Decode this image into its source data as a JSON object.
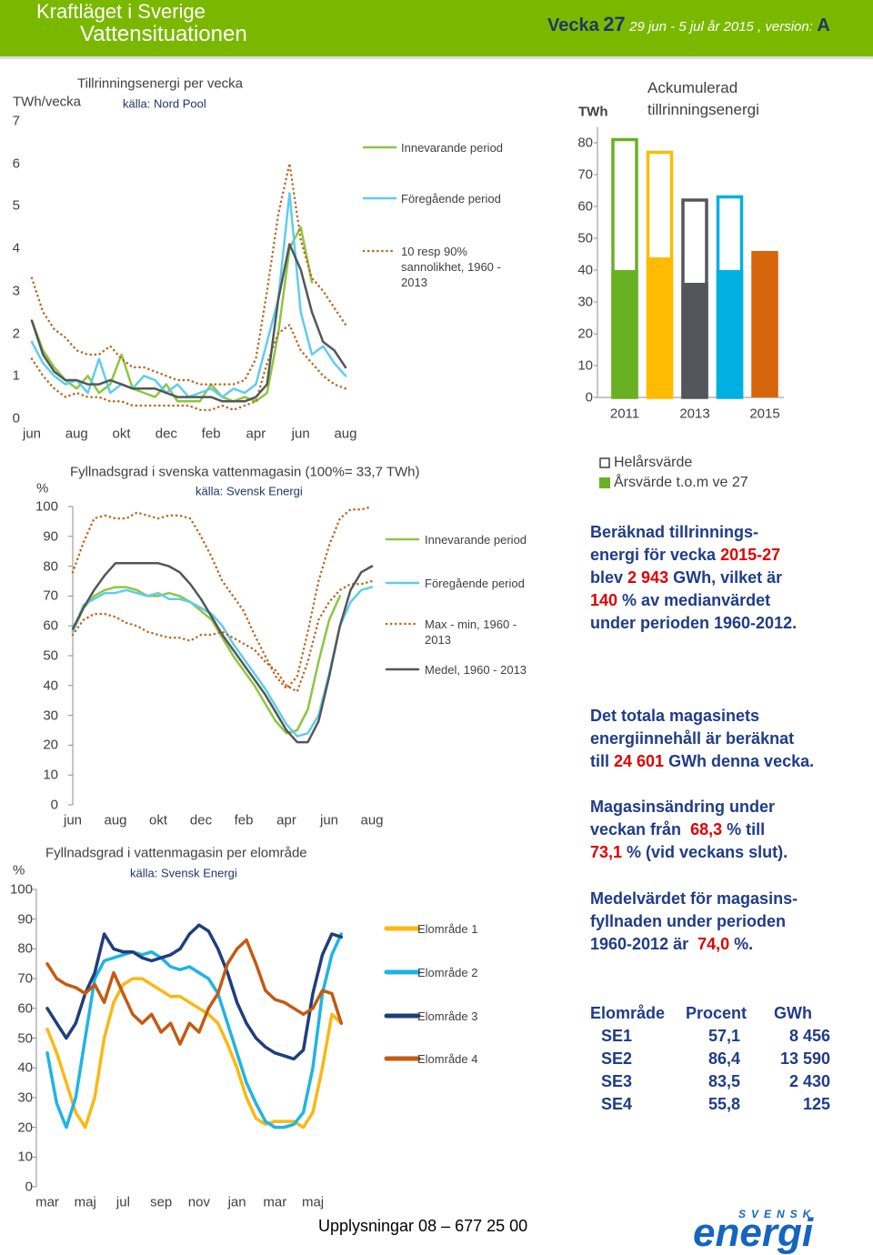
{
  "header": {
    "title": "Kraftläget i Sverige",
    "subtitle": "Vattensituationen",
    "week_label": "Vecka",
    "week": "27",
    "period": "29 jun - 5 jul år 2015 , version:",
    "version": "A"
  },
  "chart_data": [
    {
      "type": "line",
      "title": "Tillrinningsenergi per vecka",
      "source": "källa: Nord Pool",
      "ylabel": "TWh/vecka",
      "categories": [
        "jun",
        null,
        null,
        null,
        "aug",
        null,
        null,
        null,
        "okt",
        null,
        null,
        null,
        "dec",
        null,
        null,
        null,
        "feb",
        null,
        null,
        null,
        "apr",
        null,
        null,
        null,
        "jun",
        null,
        null,
        null,
        "aug"
      ],
      "ylim": [
        0,
        7
      ],
      "yticks": [
        0,
        1,
        2,
        3,
        4,
        5,
        6,
        7
      ],
      "axis_line": false,
      "series": [
        {
          "name": "Innevarande period",
          "color": "#8dc63f",
          "values": [
            2.3,
            1.6,
            1.2,
            0.9,
            0.7,
            1.0,
            0.6,
            0.8,
            1.5,
            0.7,
            0.6,
            0.5,
            0.8,
            0.4,
            0.4,
            0.4,
            0.8,
            0.5,
            0.4,
            0.5,
            0.4,
            0.6,
            2.0,
            4.0,
            4.5,
            3.2,
            null,
            null,
            null
          ]
        },
        {
          "name": "Föregående period",
          "color": "#5fcdec",
          "values": [
            1.8,
            1.3,
            1.0,
            0.8,
            0.9,
            0.6,
            1.4,
            0.6,
            0.8,
            0.7,
            1.0,
            0.9,
            0.6,
            0.8,
            0.5,
            0.6,
            0.7,
            0.5,
            0.7,
            0.6,
            0.8,
            1.8,
            2.8,
            5.3,
            2.5,
            1.5,
            1.7,
            1.3,
            1.0
          ]
        },
        {
          "name": "10 resp 90% sannolikhet, 1960 - 2013",
          "color": "#c0631b",
          "style": "dotted",
          "values": [
            3.3,
            2.5,
            2.1,
            1.9,
            1.6,
            1.5,
            1.5,
            1.7,
            1.4,
            1.2,
            1.2,
            1.1,
            1.0,
            0.9,
            0.9,
            0.8,
            0.8,
            0.8,
            0.8,
            0.9,
            1.4,
            3.0,
            4.8,
            6.0,
            4.2,
            3.3,
            3.0,
            2.6,
            2.2
          ]
        },
        {
          "color": "#c0631b",
          "style": "dotted",
          "values": [
            1.4,
            1.0,
            0.7,
            0.5,
            0.6,
            0.5,
            0.5,
            0.4,
            0.4,
            0.3,
            0.3,
            0.3,
            0.3,
            0.3,
            0.3,
            0.2,
            0.2,
            0.3,
            0.2,
            0.3,
            0.4,
            1.3,
            2.0,
            2.2,
            1.6,
            1.3,
            1.0,
            0.8,
            0.7
          ]
        },
        {
          "color": "#53565a",
          "values": [
            2.3,
            1.5,
            1.1,
            0.9,
            0.9,
            0.8,
            0.8,
            0.9,
            0.8,
            0.7,
            0.7,
            0.7,
            0.6,
            0.5,
            0.5,
            0.5,
            0.5,
            0.4,
            0.4,
            0.4,
            0.5,
            0.8,
            2.8,
            4.1,
            3.5,
            2.5,
            1.8,
            1.6,
            1.2
          ]
        }
      ]
    },
    {
      "type": "bar",
      "title": "Ackumulerad tillrinningsenergi",
      "ylabel": "TWh",
      "categories": [
        "2011",
        null,
        "2013",
        null,
        "2015"
      ],
      "colors": [
        "#6ab023",
        "#ffbb00",
        "#53565a",
        "#00b0e0",
        "#d6650c"
      ],
      "ylim": [
        0,
        85
      ],
      "yticks": [
        0,
        10,
        20,
        30,
        40,
        50,
        60,
        70,
        80
      ],
      "series": [
        {
          "name": "Helårsvärde",
          "style": "outline",
          "color": "#404040",
          "values": [
            81,
            77,
            62,
            63,
            null
          ]
        },
        {
          "name": "Årsvärde t.o.m ve 27",
          "color": "#6ab023",
          "values": [
            40,
            44,
            36,
            40,
            46
          ]
        }
      ]
    },
    {
      "type": "line",
      "title": "Fyllnadsgrad i svenska vattenmagasin (100%= 33,7 TWh)",
      "source": "källa: Svensk Energi",
      "ylabel": "%",
      "categories": [
        "jun",
        null,
        null,
        null,
        "aug",
        null,
        null,
        null,
        "okt",
        null,
        null,
        null,
        "dec",
        null,
        null,
        null,
        "feb",
        null,
        null,
        null,
        "apr",
        null,
        null,
        null,
        "jun",
        null,
        null,
        null,
        "aug"
      ],
      "ylim": [
        0,
        100
      ],
      "yticks": [
        0,
        10,
        20,
        30,
        40,
        50,
        60,
        70,
        80,
        90,
        100
      ],
      "axis_line": true,
      "series": [
        {
          "name": "Innevarande period",
          "color": "#8dc63f",
          "values": [
            58,
            66,
            70,
            72,
            73,
            73,
            72,
            70,
            70,
            71,
            70,
            68,
            65,
            62,
            56,
            50,
            45,
            40,
            34,
            28,
            24,
            25,
            32,
            48,
            62,
            70,
            null,
            null,
            null
          ]
        },
        {
          "name": "Föregående period",
          "color": "#5fcdec",
          "values": [
            58,
            67,
            69,
            71,
            71,
            72,
            71,
            70,
            71,
            69,
            69,
            68,
            66,
            64,
            60,
            54,
            49,
            44,
            39,
            33,
            27,
            23,
            24,
            30,
            44,
            60,
            68,
            72,
            73
          ]
        },
        {
          "name": "Max - min, 1960 - 2013",
          "color": "#c0631b",
          "style": "dotted",
          "values": [
            78,
            88,
            96,
            97,
            96,
            96,
            98,
            97,
            96,
            97,
            97,
            96,
            90,
            83,
            75,
            70,
            65,
            57,
            50,
            43,
            39,
            43,
            58,
            75,
            87,
            96,
            99,
            99,
            100
          ]
        },
        {
          "color": "#c0631b",
          "style": "dotted",
          "values": [
            57,
            62,
            64,
            64,
            63,
            61,
            60,
            58,
            57,
            56,
            56,
            55,
            57,
            57,
            58,
            56,
            54,
            52,
            48,
            45,
            40,
            38,
            48,
            62,
            68,
            72,
            74,
            74,
            75
          ]
        },
        {
          "name": "Medel, 1960 - 2013",
          "color": "#53565a",
          "values": [
            59,
            66,
            72,
            77,
            81,
            81,
            81,
            81,
            81,
            80,
            78,
            74,
            69,
            63,
            57,
            52,
            47,
            42,
            37,
            31,
            25,
            21,
            21,
            28,
            43,
            60,
            72,
            78,
            80
          ]
        }
      ]
    },
    {
      "type": "line",
      "title": "Fyllnadsgrad i vattenmagasin per elområde",
      "source": "källa: Svensk Energi",
      "ylabel": "%",
      "categories": [
        "mar",
        null,
        null,
        null,
        "maj",
        null,
        null,
        null,
        "jul",
        null,
        null,
        null,
        "sep",
        null,
        null,
        null,
        "nov",
        null,
        null,
        null,
        "jan",
        null,
        null,
        null,
        "mar",
        null,
        null,
        null,
        "maj",
        null,
        null,
        null
      ],
      "ylim": [
        0,
        100
      ],
      "yticks": [
        0,
        10,
        20,
        30,
        40,
        50,
        60,
        70,
        80,
        90,
        100
      ],
      "axis_line": true,
      "series": [
        {
          "name": "Elområde 1",
          "color": "#fbb812",
          "values": [
            53,
            45,
            35,
            25,
            20,
            30,
            50,
            62,
            68,
            70,
            70,
            68,
            66,
            64,
            64,
            62,
            60,
            58,
            55,
            48,
            40,
            30,
            23,
            21,
            22,
            22,
            22,
            20,
            25,
            40,
            58,
            55
          ]
        },
        {
          "name": "Elområde 2",
          "color": "#1fb4e4",
          "values": [
            45,
            28,
            20,
            30,
            50,
            70,
            76,
            77,
            78,
            79,
            78,
            79,
            77,
            74,
            73,
            74,
            72,
            70,
            65,
            55,
            45,
            35,
            28,
            22,
            20,
            20,
            21,
            25,
            40,
            65,
            78,
            85
          ]
        },
        {
          "name": "Elområde 3",
          "color": "#203e7c",
          "values": [
            60,
            55,
            50,
            55,
            65,
            72,
            85,
            80,
            79,
            79,
            77,
            76,
            77,
            78,
            80,
            85,
            88,
            86,
            80,
            72,
            62,
            55,
            50,
            47,
            45,
            44,
            43,
            46,
            65,
            78,
            85,
            84
          ]
        },
        {
          "name": "Elområde 4",
          "color": "#c55a11",
          "values": [
            75,
            70,
            68,
            67,
            65,
            68,
            62,
            72,
            65,
            58,
            55,
            58,
            52,
            55,
            48,
            55,
            52,
            60,
            65,
            75,
            80,
            83,
            75,
            66,
            63,
            62,
            60,
            58,
            60,
            66,
            65,
            55
          ]
        }
      ]
    }
  ],
  "notes": [
    [
      [
        {
          "text": "Beräknad tillrinnings-"
        }
      ],
      [
        {
          "text": "energi för vecka "
        },
        {
          "text": "2015-27",
          "color": "#e00000"
        }
      ],
      [
        {
          "text": "blev "
        },
        {
          "text": "2 943",
          "color": "#e00000"
        },
        {
          "text": " GWh, vilket är"
        }
      ],
      [
        {
          "text": "140",
          "color": "#e00000"
        },
        {
          "text": " % av medianvärdet"
        }
      ],
      [
        {
          "text": "under perioden 1960-2012."
        }
      ]
    ],
    [
      [
        {
          "text": "Det totala magasinets"
        }
      ],
      [
        {
          "text": "energiinnehåll är beräknat"
        }
      ],
      [
        {
          "text": "till "
        },
        {
          "text": "24 601",
          "color": "#e00000"
        },
        {
          "text": " GWh denna vecka."
        }
      ]
    ],
    [
      [
        {
          "text": "Magasinsändring under"
        }
      ],
      [
        {
          "text": "veckan från  "
        },
        {
          "text": "68,3",
          "color": "#e00000"
        },
        {
          "text": " % till"
        }
      ],
      [
        {
          "text": "73,1",
          "color": "#e00000"
        },
        {
          "text": " % (vid veckans slut)."
        }
      ]
    ],
    [
      [
        {
          "text": "Medelvärdet för magasins-"
        }
      ],
      [
        {
          "text": "fyllnaden under perioden"
        }
      ],
      [
        {
          "text": "1960-2012 är  "
        },
        {
          "text": "74,0",
          "color": "#e00000"
        },
        {
          "text": " %."
        }
      ]
    ]
  ],
  "table": {
    "header": [
      "Elområde",
      "Procent",
      "GWh"
    ],
    "rows": [
      [
        "SE1",
        "57,1",
        "8 456"
      ],
      [
        "SE2",
        "86,4",
        "13 590"
      ],
      [
        "SE3",
        "83,5",
        "2 430"
      ],
      [
        "SE4",
        "55,8",
        "125"
      ]
    ]
  },
  "footer": {
    "contact": "Upplysningar 08 – 677 25 00",
    "logo_top": "SVENSK",
    "logo": "energi"
  }
}
